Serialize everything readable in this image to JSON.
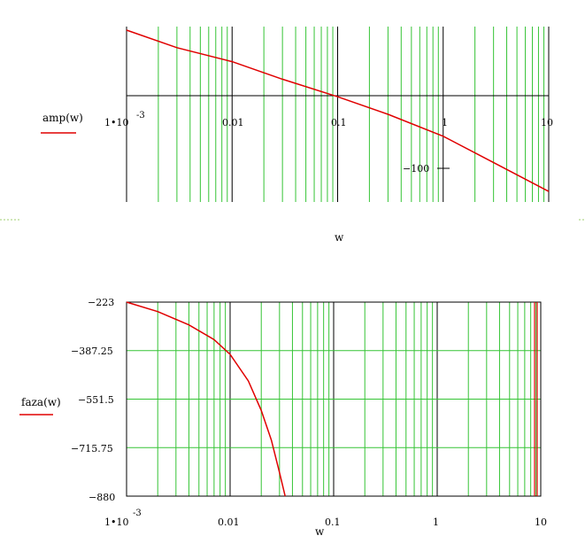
{
  "chart_data": [
    {
      "type": "line",
      "legend_label": "amp(w)",
      "xlabel": "w",
      "xscale": "log",
      "xlim": [
        0.001,
        10
      ],
      "ylim": [
        -140,
        60
      ],
      "x_tick_labels": [
        "1•10",
        "-3",
        "0.01",
        "0.1",
        "1",
        "10"
      ],
      "y_tick_labels": [
        "−100"
      ],
      "series": [
        {
          "color": "#e00000",
          "points": [
            {
              "x": 0.001,
              "y": 56
            },
            {
              "x": 0.003,
              "y": 36
            },
            {
              "x": 0.01,
              "y": 20
            },
            {
              "x": 0.03,
              "y": 0
            },
            {
              "x": 0.1,
              "y": -20
            },
            {
              "x": 0.3,
              "y": -40
            },
            {
              "x": 1,
              "y": -65
            },
            {
              "x": 3,
              "y": -95
            },
            {
              "x": 10,
              "y": -128
            }
          ]
        }
      ]
    },
    {
      "type": "line",
      "legend_label": "faza(w)",
      "xlabel": "w",
      "xscale": "log",
      "xlim": [
        0.001,
        10
      ],
      "ylim": [
        -880,
        -223
      ],
      "x_tick_labels": [
        "1•10",
        "-3",
        "0.01",
        "0.1",
        "1",
        "10"
      ],
      "y_tick_labels": [
        "−223",
        "−387.25",
        "−551.5",
        "−715.75",
        "−880"
      ],
      "series": [
        {
          "color": "#e00000",
          "points": [
            {
              "x": 0.001,
              "y": -223
            },
            {
              "x": 0.002,
              "y": -255
            },
            {
              "x": 0.004,
              "y": -300
            },
            {
              "x": 0.007,
              "y": -350
            },
            {
              "x": 0.01,
              "y": -400
            },
            {
              "x": 0.015,
              "y": -490
            },
            {
              "x": 0.02,
              "y": -590
            },
            {
              "x": 0.025,
              "y": -690
            },
            {
              "x": 0.03,
              "y": -800
            },
            {
              "x": 0.034,
              "y": -880
            }
          ]
        }
      ]
    }
  ]
}
